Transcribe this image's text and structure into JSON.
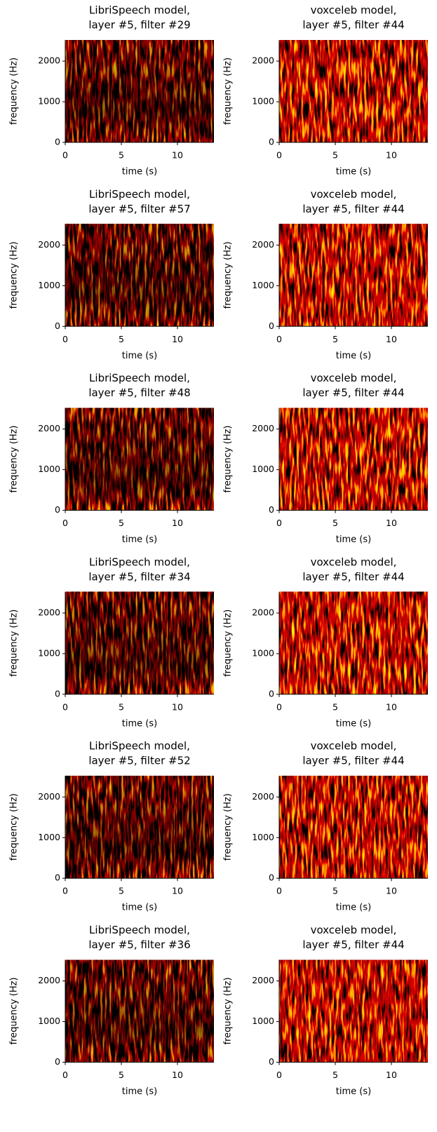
{
  "chart_data": [
    {
      "type": "heatmap",
      "title": [
        "LibriSpeech model,",
        "layer #5, filter #29"
      ],
      "x_label": "time (s)",
      "y_label": "frequency (Hz)",
      "xlim": [
        0,
        13.25
      ],
      "ylim": [
        0,
        2520
      ],
      "xticks": [
        0,
        5,
        10
      ],
      "yticks": [
        0,
        1000,
        2000
      ]
    },
    {
      "type": "heatmap",
      "title": [
        "voxceleb model,",
        "layer #5, filter #44"
      ],
      "x_label": "time (s)",
      "y_label": "frequency (Hz)",
      "xlim": [
        0,
        13.25
      ],
      "ylim": [
        0,
        2520
      ],
      "xticks": [
        0,
        5,
        10
      ],
      "yticks": [
        0,
        1000,
        2000
      ]
    },
    {
      "type": "heatmap",
      "title": [
        "LibriSpeech model,",
        "layer #5, filter #57"
      ],
      "x_label": "time (s)",
      "y_label": "frequency (Hz)",
      "xlim": [
        0,
        13.25
      ],
      "ylim": [
        0,
        2520
      ],
      "xticks": [
        0,
        5,
        10
      ],
      "yticks": [
        0,
        1000,
        2000
      ]
    },
    {
      "type": "heatmap",
      "title": [
        "voxceleb model,",
        "layer #5, filter #44"
      ],
      "x_label": "time (s)",
      "y_label": "frequency (Hz)",
      "xlim": [
        0,
        13.25
      ],
      "ylim": [
        0,
        2520
      ],
      "xticks": [
        0,
        5,
        10
      ],
      "yticks": [
        0,
        1000,
        2000
      ]
    },
    {
      "type": "heatmap",
      "title": [
        "LibriSpeech model,",
        "layer #5, filter #48"
      ],
      "x_label": "time (s)",
      "y_label": "frequency (Hz)",
      "xlim": [
        0,
        13.25
      ],
      "ylim": [
        0,
        2520
      ],
      "xticks": [
        0,
        5,
        10
      ],
      "yticks": [
        0,
        1000,
        2000
      ]
    },
    {
      "type": "heatmap",
      "title": [
        "voxceleb model,",
        "layer #5, filter #44"
      ],
      "x_label": "time (s)",
      "y_label": "frequency (Hz)",
      "xlim": [
        0,
        13.25
      ],
      "ylim": [
        0,
        2520
      ],
      "xticks": [
        0,
        5,
        10
      ],
      "yticks": [
        0,
        1000,
        2000
      ]
    },
    {
      "type": "heatmap",
      "title": [
        "LibriSpeech model,",
        "layer #5, filter #34"
      ],
      "x_label": "time (s)",
      "y_label": "frequency (Hz)",
      "xlim": [
        0,
        13.25
      ],
      "ylim": [
        0,
        2520
      ],
      "xticks": [
        0,
        5,
        10
      ],
      "yticks": [
        0,
        1000,
        2000
      ]
    },
    {
      "type": "heatmap",
      "title": [
        "voxceleb model,",
        "layer #5, filter #44"
      ],
      "x_label": "time (s)",
      "y_label": "frequency (Hz)",
      "xlim": [
        0,
        13.25
      ],
      "ylim": [
        0,
        2520
      ],
      "xticks": [
        0,
        5,
        10
      ],
      "yticks": [
        0,
        1000,
        2000
      ]
    },
    {
      "type": "heatmap",
      "title": [
        "LibriSpeech model,",
        "layer #5, filter #52"
      ],
      "x_label": "time (s)",
      "y_label": "frequency (Hz)",
      "xlim": [
        0,
        13.25
      ],
      "ylim": [
        0,
        2520
      ],
      "xticks": [
        0,
        5,
        10
      ],
      "yticks": [
        0,
        1000,
        2000
      ]
    },
    {
      "type": "heatmap",
      "title": [
        "voxceleb model,",
        "layer #5, filter #44"
      ],
      "x_label": "time (s)",
      "y_label": "frequency (Hz)",
      "xlim": [
        0,
        13.25
      ],
      "ylim": [
        0,
        2520
      ],
      "xticks": [
        0,
        5,
        10
      ],
      "yticks": [
        0,
        1000,
        2000
      ]
    },
    {
      "type": "heatmap",
      "title": [
        "LibriSpeech model,",
        "layer #5, filter #36"
      ],
      "x_label": "time (s)",
      "y_label": "frequency (Hz)",
      "xlim": [
        0,
        13.25
      ],
      "ylim": [
        0,
        2520
      ],
      "xticks": [
        0,
        5,
        10
      ],
      "yticks": [
        0,
        1000,
        2000
      ]
    },
    {
      "type": "heatmap",
      "title": [
        "voxceleb model,",
        "layer #5, filter #44"
      ],
      "x_label": "time (s)",
      "y_label": "frequency (Hz)",
      "xlim": [
        0,
        13.25
      ],
      "ylim": [
        0,
        2520
      ],
      "xticks": [
        0,
        5,
        10
      ],
      "yticks": [
        0,
        1000,
        2000
      ]
    }
  ]
}
